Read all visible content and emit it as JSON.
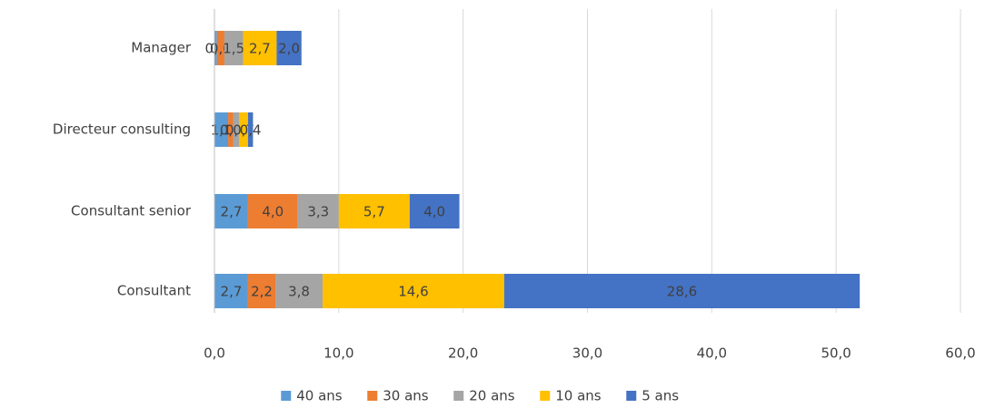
{
  "chart_data": {
    "type": "stacked-barh",
    "categories": [
      "Manager",
      "Directeur consulting",
      "Consultant senior",
      "Consultant"
    ],
    "series": [
      {
        "name": "40 ans",
        "color": "#5b9bd5",
        "values": [
          0.2,
          1.1,
          2.7,
          2.7
        ],
        "value_labels": [
          "0,2",
          "1,1",
          "2,7",
          "2,7"
        ]
      },
      {
        "name": "30 ans",
        "color": "#ed7d31",
        "values": [
          0.6,
          0.4,
          4.0,
          2.2
        ],
        "value_labels": [
          "0,6",
          "0,4",
          "4,0",
          "2,2"
        ]
      },
      {
        "name": "20 ans",
        "color": "#a5a5a5",
        "values": [
          1.5,
          0.5,
          3.3,
          3.8
        ],
        "value_labels": [
          "1,5",
          "0,5",
          "3,3",
          "3,8"
        ]
      },
      {
        "name": "10 ans",
        "color": "#ffc000",
        "values": [
          2.7,
          0.7,
          5.7,
          14.6
        ],
        "value_labels": [
          "2,7",
          "0,7",
          "5,7",
          "14,6"
        ]
      },
      {
        "name": "5 ans",
        "color": "#4472c4",
        "values": [
          2.0,
          0.4,
          4.0,
          28.6
        ],
        "value_labels": [
          "2,0",
          "0,4",
          "4,0",
          "28,6"
        ]
      }
    ],
    "xlim": [
      0,
      60
    ],
    "xticks": [
      {
        "value": 0,
        "label": "0,0"
      },
      {
        "value": 10,
        "label": "10,0"
      },
      {
        "value": 20,
        "label": "20,0"
      },
      {
        "value": 30,
        "label": "30,0"
      },
      {
        "value": 40,
        "label": "40,0"
      },
      {
        "value": 50,
        "label": "50,0"
      },
      {
        "value": 60,
        "label": "60,0"
      }
    ],
    "grid": true,
    "legend": "bottom"
  }
}
